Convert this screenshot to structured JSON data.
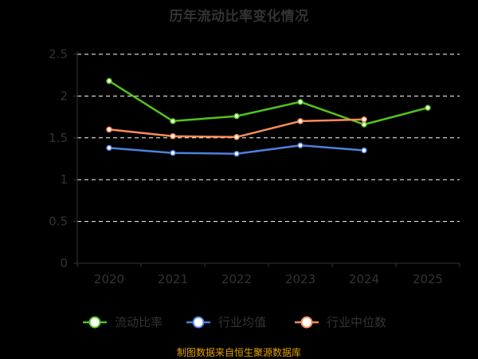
{
  "title": "历年流动比率变化情况",
  "source": "制图数据来自恒生聚源数据库",
  "colors": {
    "background": "#000000",
    "axis": "#333333",
    "grid": "#ffffff",
    "text": "#333333",
    "source": "#E5A100"
  },
  "chart_data": {
    "type": "line",
    "categories": [
      "2020",
      "2021",
      "2022",
      "2023",
      "2024",
      "2025"
    ],
    "ylim": [
      0,
      2.5
    ],
    "yticks": [
      "0",
      "0.5",
      "1",
      "1.5",
      "2",
      "2.5"
    ],
    "grid": true,
    "legend_position": "bottom",
    "series": [
      {
        "name": "流动比率",
        "color": "#52C41A",
        "values": [
          2.18,
          1.7,
          1.76,
          1.93,
          1.66,
          1.86
        ]
      },
      {
        "name": "行业均值",
        "color": "#4F7FE0",
        "values": [
          1.38,
          1.32,
          1.31,
          1.41,
          1.35,
          null
        ]
      },
      {
        "name": "行业中位数",
        "color": "#FF8C5A",
        "values": [
          1.6,
          1.52,
          1.51,
          1.7,
          1.72,
          null
        ]
      }
    ]
  }
}
